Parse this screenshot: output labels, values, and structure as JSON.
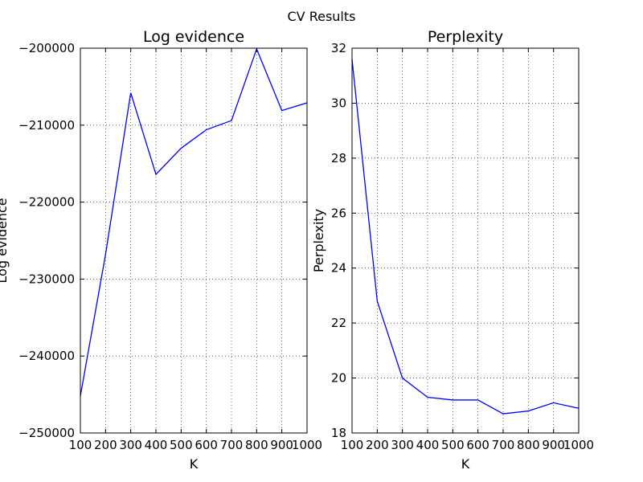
{
  "chart_data": {
    "suptitle": "CV Results",
    "charts": [
      {
        "type": "line",
        "title": "Log evidence",
        "xlabel": "K",
        "ylabel": "Log evidence",
        "x": [
          100,
          200,
          300,
          400,
          500,
          600,
          700,
          800,
          900,
          1000
        ],
        "xlim": [
          100,
          1000
        ],
        "ylim": [
          -250000,
          -200000
        ],
        "xticks": [
          100,
          200,
          300,
          400,
          500,
          600,
          700,
          800,
          900,
          1000
        ],
        "xtick_labels": [
          "100",
          "200",
          "300",
          "400",
          "500",
          "600",
          "700",
          "800",
          "900",
          "1000"
        ],
        "yticks": [
          -250000,
          -240000,
          -230000,
          -220000,
          -210000,
          -200000
        ],
        "ytick_labels": [
          "−250000",
          "−240000",
          "−230000",
          "−220000",
          "−210000",
          "−200000"
        ],
        "grid": true,
        "series": [
          {
            "values": [
              -245200,
              -226800,
              -205800,
              -216400,
              -213000,
              -210600,
              -209400,
              -200100,
              -208100,
              -207100
            ],
            "color": "#0000ff"
          }
        ]
      },
      {
        "type": "line",
        "title": "Perplexity",
        "xlabel": "K",
        "ylabel": "Perplexity",
        "x": [
          100,
          200,
          300,
          400,
          500,
          600,
          700,
          800,
          900,
          1000
        ],
        "xlim": [
          100,
          1000
        ],
        "ylim": [
          18,
          32
        ],
        "xticks": [
          100,
          200,
          300,
          400,
          500,
          600,
          700,
          800,
          900,
          1000
        ],
        "xtick_labels": [
          "100",
          "200",
          "300",
          "400",
          "500",
          "600",
          "700",
          "800",
          "900",
          "1000"
        ],
        "yticks": [
          18,
          20,
          22,
          24,
          26,
          28,
          30,
          32
        ],
        "ytick_labels": [
          "18",
          "20",
          "22",
          "24",
          "26",
          "28",
          "30",
          "32"
        ],
        "grid": true,
        "series": [
          {
            "values": [
              31.6,
              22.8,
              20.0,
              19.3,
              19.2,
              19.2,
              18.7,
              18.8,
              19.1,
              18.9
            ],
            "color": "#0000ff"
          }
        ]
      }
    ]
  }
}
